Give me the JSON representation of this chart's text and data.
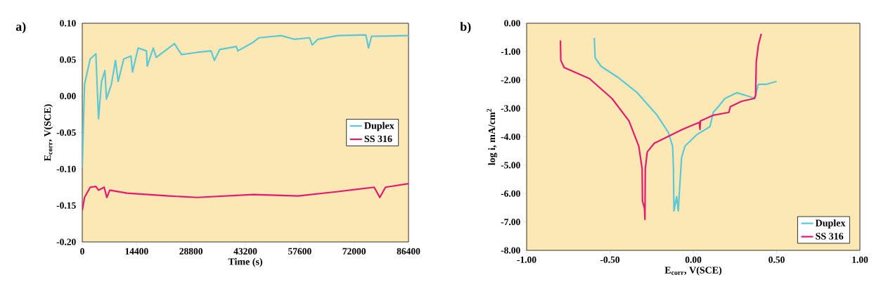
{
  "chart_data": [
    {
      "type": "line",
      "title": "a)",
      "xlabel": "Time (s)",
      "ylabel": "E$_{corr}$, V(SCE)",
      "xlim": [
        0,
        86400
      ],
      "ylim": [
        -0.2,
        0.1
      ],
      "xticks": [
        0,
        14400,
        28800,
        43200,
        57600,
        72000,
        86400
      ],
      "yticks": [
        {
          "value": -0.2,
          "label": "-0.20"
        },
        {
          "value": -0.15,
          "label": "-0.15"
        },
        {
          "value": -0.1,
          "label": "-0.10"
        },
        {
          "value": -0.05,
          "label": "-0.05"
        },
        {
          "value": 0,
          "label": "0.00"
        },
        {
          "value": 0.05,
          "label": "0.05"
        },
        {
          "value": 0.1,
          "label": "0.10"
        }
      ],
      "legend": "right",
      "marker": "none",
      "line_style": "solid",
      "series": [
        {
          "name": "Duplex",
          "color": "#5bc8d8",
          "x": [
            0,
            600,
            2100,
            3600,
            4300,
            5100,
            6000,
            6400,
            7700,
            8800,
            9500,
            11000,
            12900,
            13300,
            14800,
            17000,
            17200,
            18800,
            19600,
            24400,
            26300,
            30400,
            34100,
            35000,
            36400,
            40800,
            41200,
            45300,
            46800,
            52700,
            56100,
            60200,
            60900,
            62400,
            67600,
            75100,
            75800,
            76600,
            86400
          ],
          "values": [
            -0.098,
            0.016,
            0.051,
            0.058,
            -0.031,
            0.02,
            0.035,
            -0.004,
            0.016,
            0.049,
            0.02,
            0.051,
            0.055,
            0.033,
            0.066,
            0.062,
            0.041,
            0.066,
            0.053,
            0.072,
            0.057,
            0.06,
            0.062,
            0.049,
            0.064,
            0.068,
            0.062,
            0.074,
            0.08,
            0.083,
            0.078,
            0.08,
            0.07,
            0.078,
            0.083,
            0.084,
            0.066,
            0.082,
            0.083
          ]
        },
        {
          "name": "SS 316",
          "color": "#e8176f",
          "x": [
            0,
            600,
            2100,
            3600,
            4300,
            5800,
            6500,
            7300,
            11800,
            23000,
            30400,
            45300,
            57200,
            67600,
            77300,
            78800,
            80300,
            86400
          ],
          "values": [
            -0.157,
            -0.139,
            -0.125,
            -0.124,
            -0.129,
            -0.125,
            -0.139,
            -0.129,
            -0.133,
            -0.137,
            -0.139,
            -0.135,
            -0.137,
            -0.131,
            -0.125,
            -0.139,
            -0.125,
            -0.12
          ]
        }
      ]
    },
    {
      "type": "line",
      "title": "b)",
      "xlabel": "E$_{corr}$, V(SCE)",
      "ylabel": "log i, mA/cm$^{2}$",
      "xlim": [
        -1,
        1
      ],
      "ylim": [
        -8,
        0
      ],
      "xticks": [
        {
          "value": -1,
          "label": "-1.00"
        },
        {
          "value": -0.5,
          "label": "-0.50"
        },
        {
          "value": 0,
          "label": "0.00"
        },
        {
          "value": 0.5,
          "label": "0.50"
        },
        {
          "value": 1,
          "label": "1.00"
        }
      ],
      "yticks": [
        {
          "value": -8,
          "label": "-8.00"
        },
        {
          "value": -7,
          "label": "-7.00"
        },
        {
          "value": -6,
          "label": "-6.00"
        },
        {
          "value": -5,
          "label": "-5.00"
        },
        {
          "value": -4,
          "label": "-4.00"
        },
        {
          "value": -3,
          "label": "-3.00"
        },
        {
          "value": -2,
          "label": "-2.00"
        },
        {
          "value": -1,
          "label": "-1.00"
        },
        {
          "value": 0,
          "label": "0.00"
        }
      ],
      "legend": "bottom right",
      "marker": "none",
      "line_style": "solid",
      "series": [
        {
          "name": "Duplex",
          "color": "#5bc8d8",
          "x": [
            -0.594,
            -0.589,
            -0.555,
            -0.454,
            -0.336,
            -0.217,
            -0.15,
            -0.124,
            -0.119,
            -0.116,
            -0.1,
            -0.09,
            -0.08,
            -0.07,
            -0.05,
            0.02,
            0.1,
            0.12,
            0.15,
            0.19,
            0.26,
            0.32,
            0.37,
            0.39,
            0.44,
            0.5
          ],
          "values": [
            -0.52,
            -1.21,
            -1.51,
            -1.9,
            -2.45,
            -3.24,
            -3.84,
            -4.33,
            -5.12,
            -6.61,
            -6.11,
            -6.61,
            -5.62,
            -4.73,
            -4.33,
            -3.93,
            -3.64,
            -3.14,
            -2.94,
            -2.65,
            -2.45,
            -2.55,
            -2.65,
            -2.15,
            -2.15,
            -2.05
          ]
        },
        {
          "name": "SS 316",
          "color": "#e8176f",
          "x": [
            -0.797,
            -0.795,
            -0.775,
            -0.623,
            -0.488,
            -0.386,
            -0.327,
            -0.307,
            -0.305,
            -0.293,
            -0.29,
            -0.288,
            -0.276,
            -0.234,
            -0.065,
            0.036,
            0.04,
            0.043,
            0.121,
            0.214,
            0.222,
            0.29,
            0.366,
            0.374,
            0.378,
            0.391,
            0.408
          ],
          "values": [
            -0.61,
            -1.31,
            -1.56,
            -1.95,
            -2.65,
            -3.44,
            -4.33,
            -5.12,
            -6.26,
            -6.51,
            -6.91,
            -5.12,
            -4.53,
            -4.23,
            -3.74,
            -3.49,
            -3.74,
            -3.44,
            -3.24,
            -3.14,
            -2.94,
            -2.75,
            -2.65,
            -2.55,
            -1.36,
            -0.76,
            -0.37
          ]
        }
      ]
    }
  ]
}
